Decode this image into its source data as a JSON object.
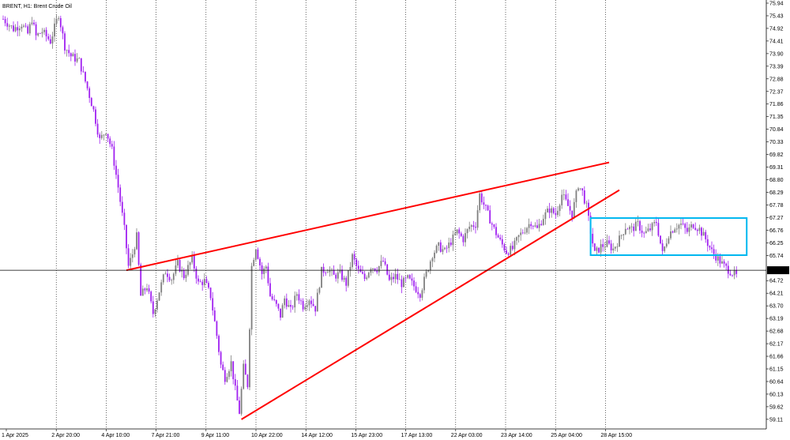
{
  "header": {
    "title": "BRENT, H1:  Brent Crude Oil"
  },
  "colors": {
    "background": "#ffffff",
    "candle_up": "#7f7f7f",
    "candle_down": "#a020f0",
    "wedge": "#ff0000",
    "range_box": "#00b7ef",
    "grid": "#000000",
    "price_line": "#000000"
  },
  "price_label": {
    "value": "65.14"
  },
  "chart_data": {
    "type": "candlestick",
    "title": "BRENT, H1:  Brent Crude Oil",
    "grid": "vertical dotted",
    "ylim": [
      58.85,
      75.94
    ],
    "y_ticks": [
      "75.94",
      "75.43",
      "74.92",
      "74.41",
      "73.90",
      "73.39",
      "72.88",
      "72.37",
      "71.86",
      "71.35",
      "70.84",
      "70.33",
      "69.82",
      "69.31",
      "68.80",
      "68.29",
      "67.78",
      "67.27",
      "66.76",
      "66.25",
      "65.74",
      "65.14",
      "64.72",
      "64.21",
      "63.70",
      "63.19",
      "62.68",
      "62.17",
      "61.66",
      "61.15",
      "60.64",
      "60.13",
      "59.62",
      "59.11"
    ],
    "x_ticks": [
      "1 Apr 2025",
      "2 Apr 20:00",
      "4 Apr 10:00",
      "7 Apr 21:00",
      "9 Apr 11:00",
      "10 Apr 22:00",
      "14 Apr 12:00",
      "15 Apr 23:00",
      "17 Apr 13:00",
      "22 Apr 03:00",
      "23 Apr 14:00",
      "25 Apr 04:00",
      "28 Apr 15:00"
    ],
    "current_price": 65.14,
    "close_path": [
      {
        "x": 0,
        "y": 75.3
      },
      {
        "x": 5,
        "y": 74.9
      },
      {
        "x": 9,
        "y": 75.1
      },
      {
        "x": 12,
        "y": 74.7
      },
      {
        "x": 14,
        "y": 75.3
      },
      {
        "x": 16,
        "y": 74.6
      },
      {
        "x": 19,
        "y": 74.8
      },
      {
        "x": 23,
        "y": 74.4
      },
      {
        "x": 27,
        "y": 75.5
      },
      {
        "x": 30,
        "y": 74.2
      },
      {
        "x": 33,
        "y": 73.8
      },
      {
        "x": 37,
        "y": 73.6
      },
      {
        "x": 41,
        "y": 72.5
      },
      {
        "x": 44,
        "y": 71.6
      },
      {
        "x": 47,
        "y": 70.4
      },
      {
        "x": 50,
        "y": 70.8
      },
      {
        "x": 53,
        "y": 70.0
      },
      {
        "x": 56,
        "y": 68.5
      },
      {
        "x": 59,
        "y": 66.8
      },
      {
        "x": 61,
        "y": 65.3
      },
      {
        "x": 63,
        "y": 65.8
      },
      {
        "x": 65,
        "y": 66.5
      },
      {
        "x": 67,
        "y": 64.1
      },
      {
        "x": 70,
        "y": 64.5
      },
      {
        "x": 73,
        "y": 63.4
      },
      {
        "x": 76,
        "y": 64.3
      },
      {
        "x": 79,
        "y": 65.1
      },
      {
        "x": 82,
        "y": 64.8
      },
      {
        "x": 85,
        "y": 65.4
      },
      {
        "x": 88,
        "y": 64.9
      },
      {
        "x": 92,
        "y": 65.6
      },
      {
        "x": 95,
        "y": 64.6
      },
      {
        "x": 98,
        "y": 64.7
      },
      {
        "x": 101,
        "y": 64.1
      },
      {
        "x": 104,
        "y": 62.5
      },
      {
        "x": 106,
        "y": 61.3
      },
      {
        "x": 108,
        "y": 60.8
      },
      {
        "x": 111,
        "y": 61.4
      },
      {
        "x": 113,
        "y": 60.3
      },
      {
        "x": 115,
        "y": 59.4
      },
      {
        "x": 117,
        "y": 61.2
      },
      {
        "x": 119,
        "y": 60.5
      },
      {
        "x": 121,
        "y": 65.3
      },
      {
        "x": 123,
        "y": 66.1
      },
      {
        "x": 126,
        "y": 65.0
      },
      {
        "x": 128,
        "y": 65.3
      },
      {
        "x": 130,
        "y": 64.1
      },
      {
        "x": 133,
        "y": 63.7
      },
      {
        "x": 135,
        "y": 63.3
      },
      {
        "x": 137,
        "y": 64.0
      },
      {
        "x": 140,
        "y": 63.5
      },
      {
        "x": 143,
        "y": 64.2
      },
      {
        "x": 146,
        "y": 63.7
      },
      {
        "x": 149,
        "y": 64.0
      },
      {
        "x": 152,
        "y": 63.6
      },
      {
        "x": 155,
        "y": 65.1
      },
      {
        "x": 158,
        "y": 65.2
      },
      {
        "x": 161,
        "y": 64.9
      },
      {
        "x": 164,
        "y": 65.0
      },
      {
        "x": 167,
        "y": 64.6
      },
      {
        "x": 170,
        "y": 65.7
      },
      {
        "x": 173,
        "y": 65.1
      },
      {
        "x": 176,
        "y": 64.8
      },
      {
        "x": 179,
        "y": 65.3
      },
      {
        "x": 182,
        "y": 65.2
      },
      {
        "x": 185,
        "y": 65.5
      },
      {
        "x": 188,
        "y": 64.7
      },
      {
        "x": 191,
        "y": 64.9
      },
      {
        "x": 194,
        "y": 64.6
      },
      {
        "x": 197,
        "y": 64.8
      },
      {
        "x": 200,
        "y": 64.5
      },
      {
        "x": 203,
        "y": 64.2
      },
      {
        "x": 206,
        "y": 65.0
      },
      {
        "x": 209,
        "y": 65.8
      },
      {
        "x": 212,
        "y": 66.1
      },
      {
        "x": 215,
        "y": 65.9
      },
      {
        "x": 218,
        "y": 66.3
      },
      {
        "x": 221,
        "y": 66.7
      },
      {
        "x": 224,
        "y": 66.4
      },
      {
        "x": 227,
        "y": 66.9
      },
      {
        "x": 230,
        "y": 67.0
      },
      {
        "x": 232,
        "y": 68.2
      },
      {
        "x": 234,
        "y": 67.8
      },
      {
        "x": 236,
        "y": 67.4
      },
      {
        "x": 239,
        "y": 66.8
      },
      {
        "x": 242,
        "y": 66.3
      },
      {
        "x": 245,
        "y": 65.9
      },
      {
        "x": 248,
        "y": 66.0
      },
      {
        "x": 251,
        "y": 66.5
      },
      {
        "x": 254,
        "y": 66.8
      },
      {
        "x": 257,
        "y": 67.1
      },
      {
        "x": 260,
        "y": 66.8
      },
      {
        "x": 263,
        "y": 67.3
      },
      {
        "x": 266,
        "y": 67.6
      },
      {
        "x": 269,
        "y": 67.4
      },
      {
        "x": 272,
        "y": 68.2
      },
      {
        "x": 274,
        "y": 67.9
      },
      {
        "x": 277,
        "y": 67.4
      },
      {
        "x": 280,
        "y": 68.6
      },
      {
        "x": 282,
        "y": 68.3
      },
      {
        "x": 284,
        "y": 67.7
      },
      {
        "x": 286,
        "y": 66.7
      },
      {
        "x": 288,
        "y": 65.8
      },
      {
        "x": 291,
        "y": 66.1
      },
      {
        "x": 294,
        "y": 66.2
      },
      {
        "x": 297,
        "y": 66.0
      },
      {
        "x": 300,
        "y": 66.4
      },
      {
        "x": 303,
        "y": 66.9
      },
      {
        "x": 306,
        "y": 66.8
      },
      {
        "x": 309,
        "y": 67.0
      },
      {
        "x": 312,
        "y": 66.6
      },
      {
        "x": 315,
        "y": 66.8
      },
      {
        "x": 318,
        "y": 67.1
      },
      {
        "x": 321,
        "y": 65.8
      },
      {
        "x": 324,
        "y": 66.6
      },
      {
        "x": 327,
        "y": 66.9
      },
      {
        "x": 330,
        "y": 67.0
      },
      {
        "x": 333,
        "y": 66.7
      },
      {
        "x": 336,
        "y": 67.0
      },
      {
        "x": 339,
        "y": 66.8
      },
      {
        "x": 342,
        "y": 66.4
      },
      {
        "x": 345,
        "y": 65.9
      },
      {
        "x": 348,
        "y": 65.6
      },
      {
        "x": 351,
        "y": 65.3
      },
      {
        "x": 354,
        "y": 65.1
      },
      {
        "x": 357,
        "y": 64.9
      }
    ],
    "annotations": {
      "wedge_upper": [
        {
          "x": 60,
          "y": 65.14
        },
        {
          "x": 295,
          "y": 69.5
        }
      ],
      "wedge_lower": [
        {
          "x": 116,
          "y": 59.11
        },
        {
          "x": 300,
          "y": 68.38
        }
      ],
      "range_box": {
        "x0": 286,
        "x1": 362,
        "y0": 65.75,
        "y1": 67.25
      }
    }
  }
}
